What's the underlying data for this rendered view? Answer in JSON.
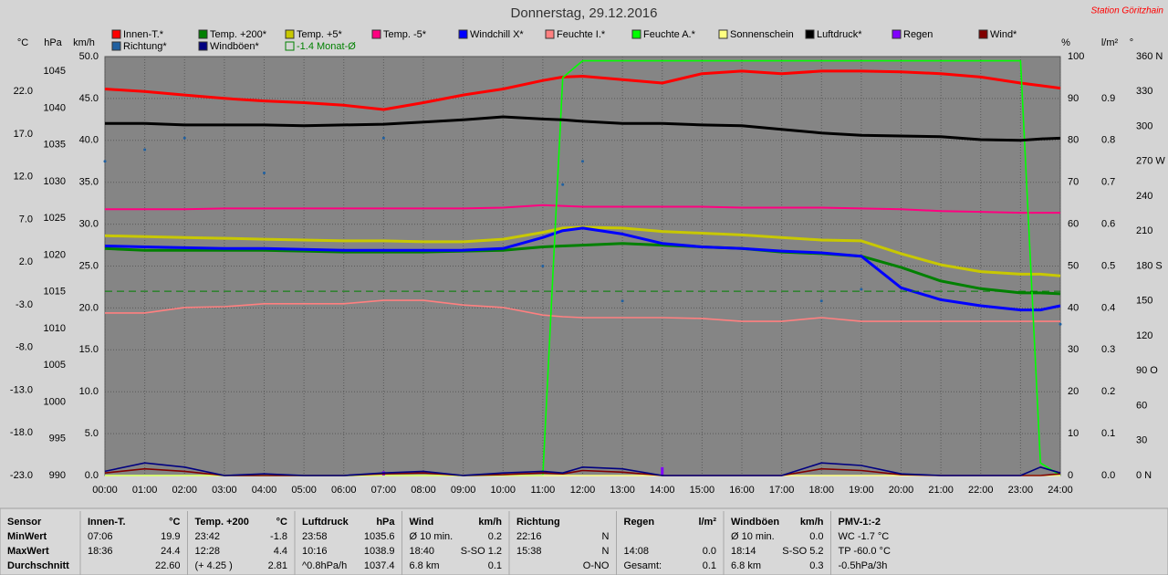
{
  "chart_data": {
    "type": "line",
    "title": "Donnerstag, 29.12.2016",
    "station": "Station Göritzhain",
    "grid": true,
    "x": [
      0,
      1,
      2,
      3,
      4,
      5,
      6,
      7,
      8,
      9,
      10,
      11,
      11.5,
      12,
      13,
      14,
      15,
      16,
      17,
      18,
      19,
      20,
      21,
      22,
      23,
      23.5,
      24
    ],
    "xlim": [
      0,
      24
    ],
    "xticks": [
      {
        "value": 0,
        "label": "00:00"
      },
      {
        "value": 1,
        "label": "01:00"
      },
      {
        "value": 2,
        "label": "02:00"
      },
      {
        "value": 3,
        "label": "03:00"
      },
      {
        "value": 4,
        "label": "04:00"
      },
      {
        "value": 5,
        "label": "05:00"
      },
      {
        "value": 6,
        "label": "06:00"
      },
      {
        "value": 7,
        "label": "07:00"
      },
      {
        "value": 8,
        "label": "08:00"
      },
      {
        "value": 9,
        "label": "09:00"
      },
      {
        "value": 10,
        "label": "10:00"
      },
      {
        "value": 11,
        "label": "11:00"
      },
      {
        "value": 12,
        "label": "12:00"
      },
      {
        "value": 13,
        "label": "13:00"
      },
      {
        "value": 14,
        "label": "14:00"
      },
      {
        "value": 15,
        "label": "15:00"
      },
      {
        "value": 16,
        "label": "16:00"
      },
      {
        "value": 17,
        "label": "17:00"
      },
      {
        "value": 18,
        "label": "18:00"
      },
      {
        "value": 19,
        "label": "19:00"
      },
      {
        "value": 20,
        "label": "20:00"
      },
      {
        "value": 21,
        "label": "21:00"
      },
      {
        "value": 22,
        "label": "22:00"
      },
      {
        "value": 23,
        "label": "23:00"
      },
      {
        "value": 24,
        "label": "24:00"
      }
    ],
    "y_axes": [
      {
        "unit": "°C",
        "side": "left",
        "ylim": [
          -23,
          26.1
        ],
        "yticks": [
          {
            "value": -23,
            "label": "-23.0"
          },
          {
            "value": -18,
            "label": "-18.0"
          },
          {
            "value": -13,
            "label": "-13.0"
          },
          {
            "value": -8,
            "label": "-8.0"
          },
          {
            "value": -3,
            "label": "-3.0"
          },
          {
            "value": 2,
            "label": "2.0"
          },
          {
            "value": 7,
            "label": "7.0"
          },
          {
            "value": 12,
            "label": "12.0"
          },
          {
            "value": 17,
            "label": "17.0"
          },
          {
            "value": 22,
            "label": "22.0"
          }
        ]
      },
      {
        "unit": "hPa",
        "side": "left",
        "ylim": [
          990,
          1047
        ],
        "yticks": [
          990,
          995,
          1000,
          1005,
          1010,
          1015,
          1020,
          1025,
          1030,
          1035,
          1040,
          1045
        ]
      },
      {
        "unit": "km/h",
        "side": "left",
        "ylim": [
          0,
          50
        ],
        "yticks": [
          {
            "value": 0,
            "label": "0.0"
          },
          {
            "value": 5,
            "label": "5.0"
          },
          {
            "value": 10,
            "label": "10.0"
          },
          {
            "value": 15,
            "label": "15.0"
          },
          {
            "value": 20,
            "label": "20.0"
          },
          {
            "value": 25,
            "label": "25.0"
          },
          {
            "value": 30,
            "label": "30.0"
          },
          {
            "value": 35,
            "label": "35.0"
          },
          {
            "value": 40,
            "label": "40.0"
          },
          {
            "value": 45,
            "label": "45.0"
          },
          {
            "value": 50,
            "label": "50.0"
          }
        ]
      },
      {
        "unit": "%",
        "side": "right",
        "ylim": [
          0,
          100
        ],
        "yticks": [
          0,
          10,
          20,
          30,
          40,
          50,
          60,
          70,
          80,
          90,
          100
        ]
      },
      {
        "unit": "l/m²",
        "side": "right",
        "ylim": [
          0,
          1
        ],
        "yticks": [
          {
            "value": 0,
            "label": "0.0"
          },
          0.1,
          0.2,
          0.3,
          0.4,
          0.5,
          0.6,
          0.7,
          0.8,
          0.9
        ]
      },
      {
        "unit": "°",
        "side": "right",
        "ylim": [
          0,
          360
        ],
        "yticks": [
          {
            "value": 0,
            "label": "0 N"
          },
          30,
          60,
          {
            "value": 90,
            "label": "90 O"
          },
          120,
          150,
          {
            "value": 180,
            "label": "180 S"
          },
          210,
          240,
          {
            "value": 270,
            "label": "270 W"
          },
          300,
          330,
          {
            "value": 360,
            "label": "360 N"
          }
        ]
      }
    ],
    "series": [
      {
        "name": "Innen-T.*",
        "color": "#ff0000",
        "axis": 0,
        "values": [
          22.3,
          22.0,
          21.6,
          21.2,
          20.9,
          20.7,
          20.4,
          19.9,
          20.7,
          21.6,
          22.3,
          23.3,
          23.7,
          23.8,
          23.4,
          23.0,
          24.1,
          24.4,
          24.1,
          24.4,
          24.4,
          24.3,
          24.1,
          23.7,
          23.0,
          22.7,
          22.4
        ]
      },
      {
        "name": "Temp. +200*",
        "color": "#008000",
        "axis": 0,
        "values": [
          3.6,
          3.4,
          3.4,
          3.4,
          3.4,
          3.3,
          3.2,
          3.2,
          3.2,
          3.3,
          3.4,
          3.8,
          3.9,
          4.0,
          4.2,
          4.0,
          3.8,
          3.6,
          3.2,
          3.0,
          2.7,
          1.4,
          -0.2,
          -1.1,
          -1.6,
          -1.6,
          -1.7
        ]
      },
      {
        "name": "Temp. +5*",
        "color": "#c8c800",
        "axis": 0,
        "values": [
          5.1,
          5.0,
          4.9,
          4.8,
          4.7,
          4.6,
          4.5,
          4.5,
          4.4,
          4.4,
          4.7,
          5.5,
          6.0,
          6.1,
          6.0,
          5.6,
          5.4,
          5.2,
          4.9,
          4.6,
          4.5,
          3.0,
          1.7,
          0.9,
          0.6,
          0.6,
          0.4
        ]
      },
      {
        "name": "Temp. -5*",
        "color": "#ff0080",
        "axis": 0,
        "values": [
          8.2,
          8.2,
          8.2,
          8.3,
          8.3,
          8.3,
          8.3,
          8.3,
          8.3,
          8.3,
          8.4,
          8.7,
          8.6,
          8.5,
          8.5,
          8.5,
          8.5,
          8.4,
          8.4,
          8.4,
          8.3,
          8.2,
          8.0,
          7.9,
          7.8,
          7.8,
          7.8
        ]
      },
      {
        "name": "Windchill X*",
        "color": "#0000ff",
        "axis": 0,
        "values": [
          3.9,
          3.8,
          3.7,
          3.6,
          3.6,
          3.5,
          3.4,
          3.4,
          3.4,
          3.4,
          3.6,
          4.9,
          5.7,
          6.0,
          5.3,
          4.2,
          3.8,
          3.6,
          3.3,
          3.1,
          2.7,
          -1.0,
          -2.4,
          -3.1,
          -3.6,
          -3.6,
          -3.1
        ]
      },
      {
        "name": "Feuchte I.*",
        "color": "#ff8080",
        "axis": 3,
        "values": [
          38.8,
          38.8,
          40.1,
          40.3,
          41.0,
          41.0,
          41.0,
          41.8,
          41.8,
          40.7,
          40.1,
          38.3,
          37.9,
          37.7,
          37.7,
          37.7,
          37.5,
          36.8,
          36.8,
          37.7,
          36.8,
          36.8,
          36.8,
          36.8,
          36.8,
          36.8,
          36.8
        ]
      },
      {
        "name": "Feuchte A.*",
        "color": "#00ff00",
        "axis": 3,
        "values": [
          0,
          0,
          0,
          0,
          0,
          0,
          0,
          0,
          0,
          0,
          0,
          0,
          95,
          99,
          99,
          99,
          99,
          99,
          99,
          99,
          99,
          99,
          99,
          99,
          99,
          3,
          0
        ]
      },
      {
        "name": "Sonnenschein",
        "color": "#ffff80",
        "axis": 3,
        "values": [
          0,
          0,
          0,
          0,
          0,
          0,
          0,
          0,
          0,
          0,
          0,
          0,
          0,
          0,
          0,
          0,
          0,
          0,
          0,
          0,
          0,
          0,
          0,
          0,
          0,
          0,
          0
        ]
      },
      {
        "name": "Luftdruck*",
        "color": "#000000",
        "axis": 1,
        "values": [
          1037.9,
          1037.9,
          1037.7,
          1037.7,
          1037.7,
          1037.6,
          1037.7,
          1037.8,
          1038.1,
          1038.4,
          1038.8,
          1038.5,
          1038.4,
          1038.2,
          1037.9,
          1037.9,
          1037.7,
          1037.6,
          1037.1,
          1036.6,
          1036.3,
          1036.2,
          1036.1,
          1035.7,
          1035.6,
          1035.8,
          1035.9
        ]
      },
      {
        "name": "Regen",
        "color": "#8000ff",
        "axis": 4,
        "style": "bars",
        "values": [
          0,
          0,
          0,
          0,
          0,
          0,
          0,
          0.01,
          0,
          0,
          0,
          0,
          0,
          0,
          0,
          0.02,
          0,
          0,
          0,
          0,
          0,
          0,
          0,
          0,
          0,
          0,
          0
        ]
      },
      {
        "name": "Wind*",
        "color": "#800000",
        "axis": 2,
        "values": [
          0.3,
          0.8,
          0.5,
          0,
          0,
          0,
          0,
          0.2,
          0.3,
          0,
          0.1,
          0.3,
          0.2,
          0.6,
          0.4,
          0,
          0,
          0,
          0,
          0.8,
          0.6,
          0.1,
          0,
          0,
          0,
          0,
          0.2
        ]
      },
      {
        "name": "Richtung*",
        "color": "#2060a0",
        "axis": 5,
        "style": "dots",
        "values": [
          270,
          280,
          290,
          null,
          260,
          null,
          null,
          290,
          null,
          null,
          null,
          180,
          250,
          270,
          150,
          null,
          null,
          null,
          null,
          150,
          160,
          null,
          null,
          null,
          null,
          null,
          130
        ]
      },
      {
        "name": "Windböen*",
        "color": "#000080",
        "axis": 2,
        "values": [
          0.5,
          1.5,
          1.0,
          0,
          0.2,
          0,
          0,
          0.3,
          0.5,
          0,
          0.3,
          0.5,
          0.3,
          1.0,
          0.8,
          0,
          0,
          0,
          0,
          1.5,
          1.2,
          0.2,
          0,
          0,
          0,
          1.0,
          0.3
        ]
      },
      {
        "name": "-1.4 Monat-Ø",
        "color": "#008000",
        "axis": 0,
        "style": "level",
        "level": -1.4
      }
    ],
    "stats": {
      "header_label": "Sensor",
      "row_labels": [
        "MinWert",
        "MaxWert",
        "Durchschnitt"
      ],
      "columns": [
        {
          "title": "Innen-T.",
          "unit": "°C",
          "cells": [
            [
              "07:06",
              "19.9"
            ],
            [
              "18:36",
              "24.4"
            ],
            [
              null,
              "22.60"
            ]
          ]
        },
        {
          "title": "Temp. +200",
          "unit": "°C",
          "cells": [
            [
              "23:42",
              "-1.8"
            ],
            [
              "12:28",
              "4.4"
            ],
            [
              "(+ 4.25 )",
              "2.81"
            ]
          ]
        },
        {
          "title": "Luftdruck",
          "unit": "hPa",
          "cells": [
            [
              "23:58",
              "1035.6"
            ],
            [
              "10:16",
              "1038.9"
            ],
            [
              "^0.8hPa/h",
              "1037.4"
            ]
          ]
        },
        {
          "title": "Wind",
          "unit": "km/h",
          "cells": [
            [
              "Ø 10 min.",
              "0.2"
            ],
            [
              "18:40",
              "S-SO 1.2"
            ],
            [
              "6.8 km",
              "0.1"
            ]
          ]
        },
        {
          "title": "Richtung",
          "unit": null,
          "cells": [
            [
              "22:16",
              "N"
            ],
            [
              "15:38",
              "N"
            ],
            [
              null,
              "O-NO"
            ]
          ]
        },
        {
          "title": "Regen",
          "unit": "l/m²",
          "cells": [
            [
              null,
              null
            ],
            [
              "14:08",
              "0.0"
            ],
            [
              "Gesamt:",
              "0.1"
            ]
          ]
        },
        {
          "title": "Windböen",
          "unit": "km/h",
          "cells": [
            [
              "Ø 10 min.",
              "0.0"
            ],
            [
              "18:14",
              "S-SO 5.2"
            ],
            [
              "6.8 km",
              "0.3"
            ]
          ]
        },
        {
          "title": "PMV-1:-2",
          "unit": null,
          "cells": [
            [
              "WC -1.7 °C",
              null
            ],
            [
              "TP -60.0 °C",
              null
            ],
            [
              "-0.5hPa/3h",
              null
            ]
          ]
        }
      ]
    }
  }
}
